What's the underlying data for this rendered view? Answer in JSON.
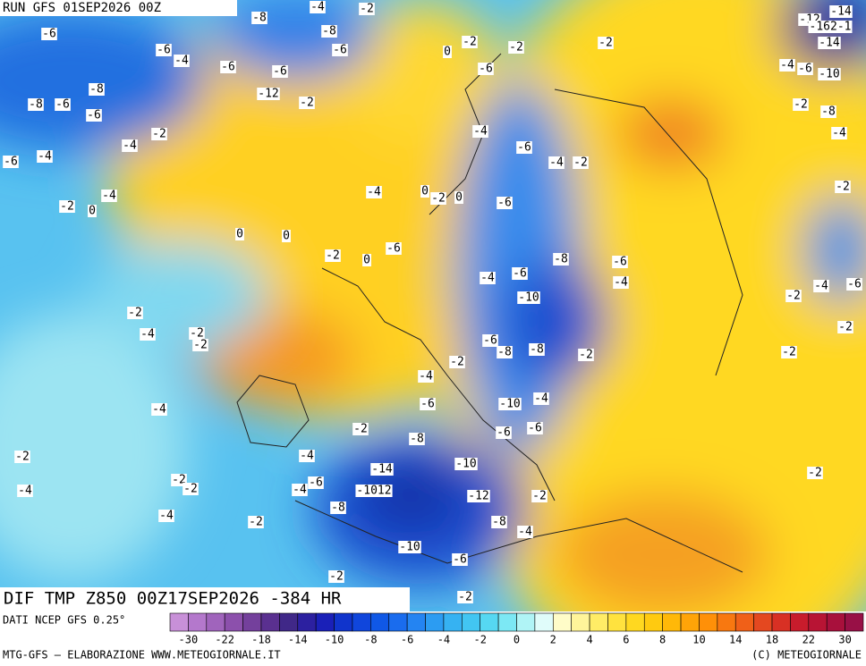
{
  "header": {
    "run": "RUN GFS 01SEP2026 00Z",
    "title": "DIF TMP Z850 00Z17SEP2026 -384 HR"
  },
  "map_labels": [
    "-6",
    "-6",
    "-4",
    "-6",
    "-6",
    "-6",
    "-8",
    "-8",
    "-4",
    "-2",
    "-8",
    "-8",
    "-6",
    "-6",
    "-12",
    "-2",
    "-4",
    "-2",
    "-4",
    "-6",
    "-4",
    "-2",
    "0",
    "0",
    "0",
    "-4",
    "-6",
    "-2",
    "0",
    "-2",
    "-6",
    "-2",
    "-2",
    "-4",
    "-6",
    "-4",
    "-2",
    "-6",
    "-8",
    "-6",
    "-6",
    "-4",
    "-4",
    "-10",
    "-2",
    "-4",
    "-2",
    "-2",
    "-6",
    "-8",
    "-8",
    "-2",
    "-2",
    "-4",
    "-6",
    "-10",
    "-4",
    "-6",
    "-6",
    "-8",
    "-2",
    "-4",
    "-2",
    "-4",
    "-10",
    "-14",
    "-1012",
    "-12",
    "-6",
    "-4",
    "-8",
    "-2",
    "-8",
    "-4",
    "-10",
    "-6",
    "-2",
    "-2",
    "-2",
    "-2",
    "-4",
    "-4",
    "-2",
    "-2",
    "-8",
    "-10",
    "-4",
    "-6",
    "-4",
    "-2",
    "-2",
    "-4",
    "-6",
    "-2",
    "-2",
    "-2",
    "-14",
    "-12",
    "-162-1",
    "-14",
    "0",
    "-2",
    "0",
    "0"
  ],
  "legend": {
    "source": "DATI NCEP GFS 0.25°",
    "ticks": [
      "-30",
      "-22",
      "-18",
      "-14",
      "-10",
      "-8",
      "-6",
      "-4",
      "-2",
      "0",
      "2",
      "4",
      "6",
      "8",
      "10",
      "14",
      "18",
      "22",
      "30"
    ],
    "colors": [
      "#c890d8",
      "#b478cc",
      "#a064bc",
      "#8c50ac",
      "#74409c",
      "#5a3090",
      "#402888",
      "#2c20a0",
      "#1a20b8",
      "#1034cc",
      "#1046dc",
      "#1058e6",
      "#1a6cee",
      "#2484f2",
      "#2c9cf2",
      "#36b2f2",
      "#42c6f2",
      "#56d8f2",
      "#7ce8f4",
      "#b0f4f6",
      "#e0fcfa",
      "#fffcc8",
      "#fff49a",
      "#ffec66",
      "#ffe23e",
      "#ffd820",
      "#ffca10",
      "#ffb808",
      "#ffa408",
      "#ff9008",
      "#f87810",
      "#f06018",
      "#e44820",
      "#d83024",
      "#c81c2c",
      "#b81434",
      "#a8103c",
      "#981046"
    ]
  },
  "footer": {
    "left": "MTG-GFS – ELABORAZIONE WWW.METEOGIORNALE.IT",
    "right": "(C) METEOGIORNALE"
  }
}
